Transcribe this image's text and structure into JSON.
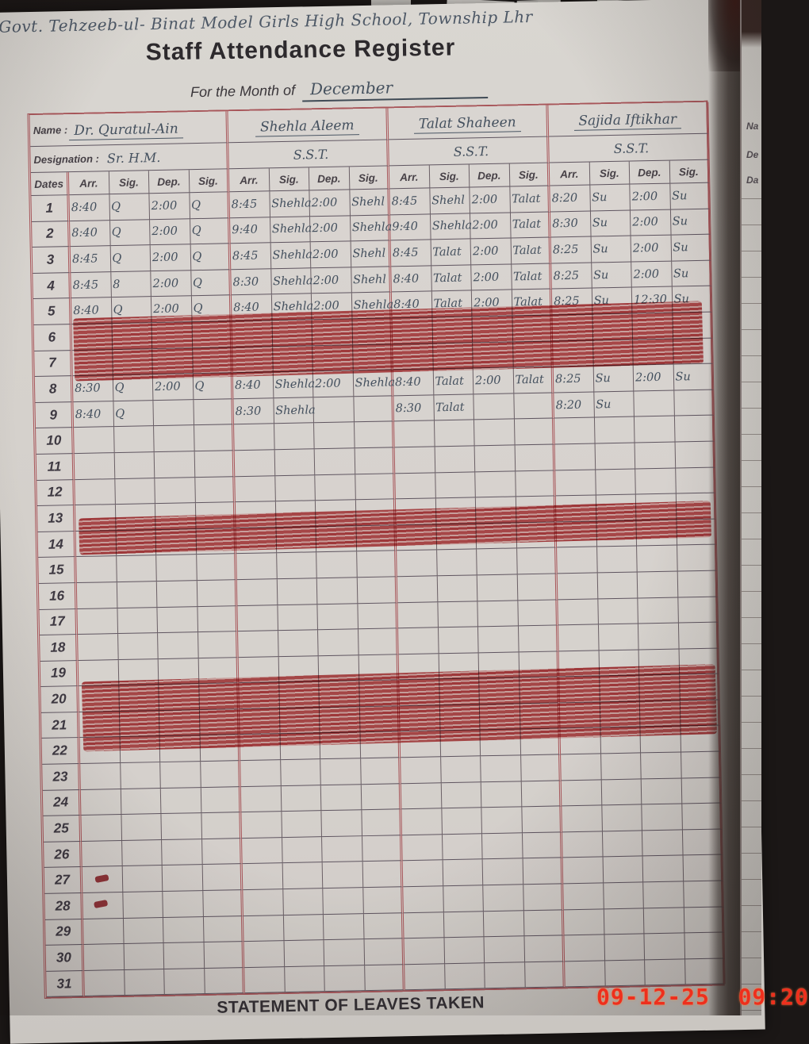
{
  "photo": {
    "timestamp": "09-12-25 09:20"
  },
  "page_header": {
    "school_line": "Govt.  Tehzeeb-ul- Binat  Model  Girls  High  School, Township Lhr",
    "title": "Staff Attendance Register",
    "month_label": "For the Month of",
    "month_value": "December"
  },
  "register": {
    "name_label": "Name :",
    "designation_label": "Designation :",
    "dates_label": "Dates",
    "column_headers": [
      "Arr.",
      "Sig.",
      "Dep.",
      "Sig."
    ],
    "staff": [
      {
        "name": "Dr. Quratul-Ain",
        "designation": "Sr. H.M."
      },
      {
        "name": "Shehla Aleem",
        "designation": "S.S.T."
      },
      {
        "name": "Talat Shaheen",
        "designation": "S.S.T."
      },
      {
        "name": "Sajida Iftikhar",
        "designation": "S.S.T."
      }
    ],
    "rows": [
      {
        "date": "1",
        "cells": [
          "8:40",
          "Q",
          "2:00",
          "Q",
          "8:45",
          "Shehla",
          "2:00",
          "Shehl",
          "8:45",
          "Shehl",
          "2:00",
          "Talat",
          "8:20",
          "Su",
          "2:00",
          "Su"
        ]
      },
      {
        "date": "2",
        "cells": [
          "8:40",
          "Q",
          "2:00",
          "Q",
          "9:40",
          "Shehla",
          "2:00",
          "Shehla",
          "9:40",
          "Shehla",
          "2:00",
          "Talat",
          "8:30",
          "Su",
          "2:00",
          "Su"
        ]
      },
      {
        "date": "3",
        "cells": [
          "8:45",
          "Q",
          "2:00",
          "Q",
          "8:45",
          "Shehla",
          "2:00",
          "Shehl",
          "8:45",
          "Talat",
          "2:00",
          "Talat",
          "8:25",
          "Su",
          "2:00",
          "Su"
        ]
      },
      {
        "date": "4",
        "cells": [
          "8:45",
          "8",
          "2:00",
          "Q",
          "8:30",
          "Shehla",
          "2:00",
          "Shehl",
          "8:40",
          "Talat",
          "2:00",
          "Talat",
          "8:25",
          "Su",
          "2:00",
          "Su"
        ]
      },
      {
        "date": "5",
        "cells": [
          "8:40",
          "Q",
          "2:00",
          "Q",
          "8:40",
          "Shehla",
          "2:00",
          "Shehla",
          "8:40",
          "Talat",
          "2:00",
          "Talat",
          "8:25",
          "Su",
          "12:30",
          "Su"
        ]
      },
      {
        "date": "6",
        "struck": true
      },
      {
        "date": "7",
        "struck": true
      },
      {
        "date": "8",
        "cells": [
          "8:30",
          "Q",
          "2:00",
          "Q",
          "8:40",
          "Shehla",
          "2:00",
          "Shehla",
          "8:40",
          "Talat",
          "2:00",
          "Talat",
          "8:25",
          "Su",
          "2:00",
          "Su"
        ]
      },
      {
        "date": "9",
        "cells": [
          "8:40",
          "Q",
          "",
          "",
          "8:30",
          "Shehla",
          "",
          "",
          "8:30",
          "Talat",
          "",
          "",
          "8:20",
          "Su",
          "",
          ""
        ]
      },
      {
        "date": "10"
      },
      {
        "date": "11"
      },
      {
        "date": "12"
      },
      {
        "date": "13",
        "struck": true
      },
      {
        "date": "14",
        "struck": true
      },
      {
        "date": "15"
      },
      {
        "date": "16"
      },
      {
        "date": "17"
      },
      {
        "date": "18"
      },
      {
        "date": "19"
      },
      {
        "date": "20",
        "struck": true
      },
      {
        "date": "21",
        "struck": true
      },
      {
        "date": "22"
      },
      {
        "date": "23"
      },
      {
        "date": "24"
      },
      {
        "date": "25"
      },
      {
        "date": "26"
      },
      {
        "date": "27",
        "marked": true
      },
      {
        "date": "28",
        "marked": true
      },
      {
        "date": "29"
      },
      {
        "date": "30"
      },
      {
        "date": "31"
      }
    ],
    "footer": "STATEMENT OF LEAVES TAKEN"
  },
  "adjacent_page": {
    "labels": [
      "Na",
      "De",
      "Da"
    ]
  },
  "colors": {
    "strike_red": "#b93a3e",
    "grid_red": "#a8565a",
    "grid_dark": "#5f5560",
    "handwriting": "#44505e",
    "timestamp_red": "#ee2f1d"
  }
}
